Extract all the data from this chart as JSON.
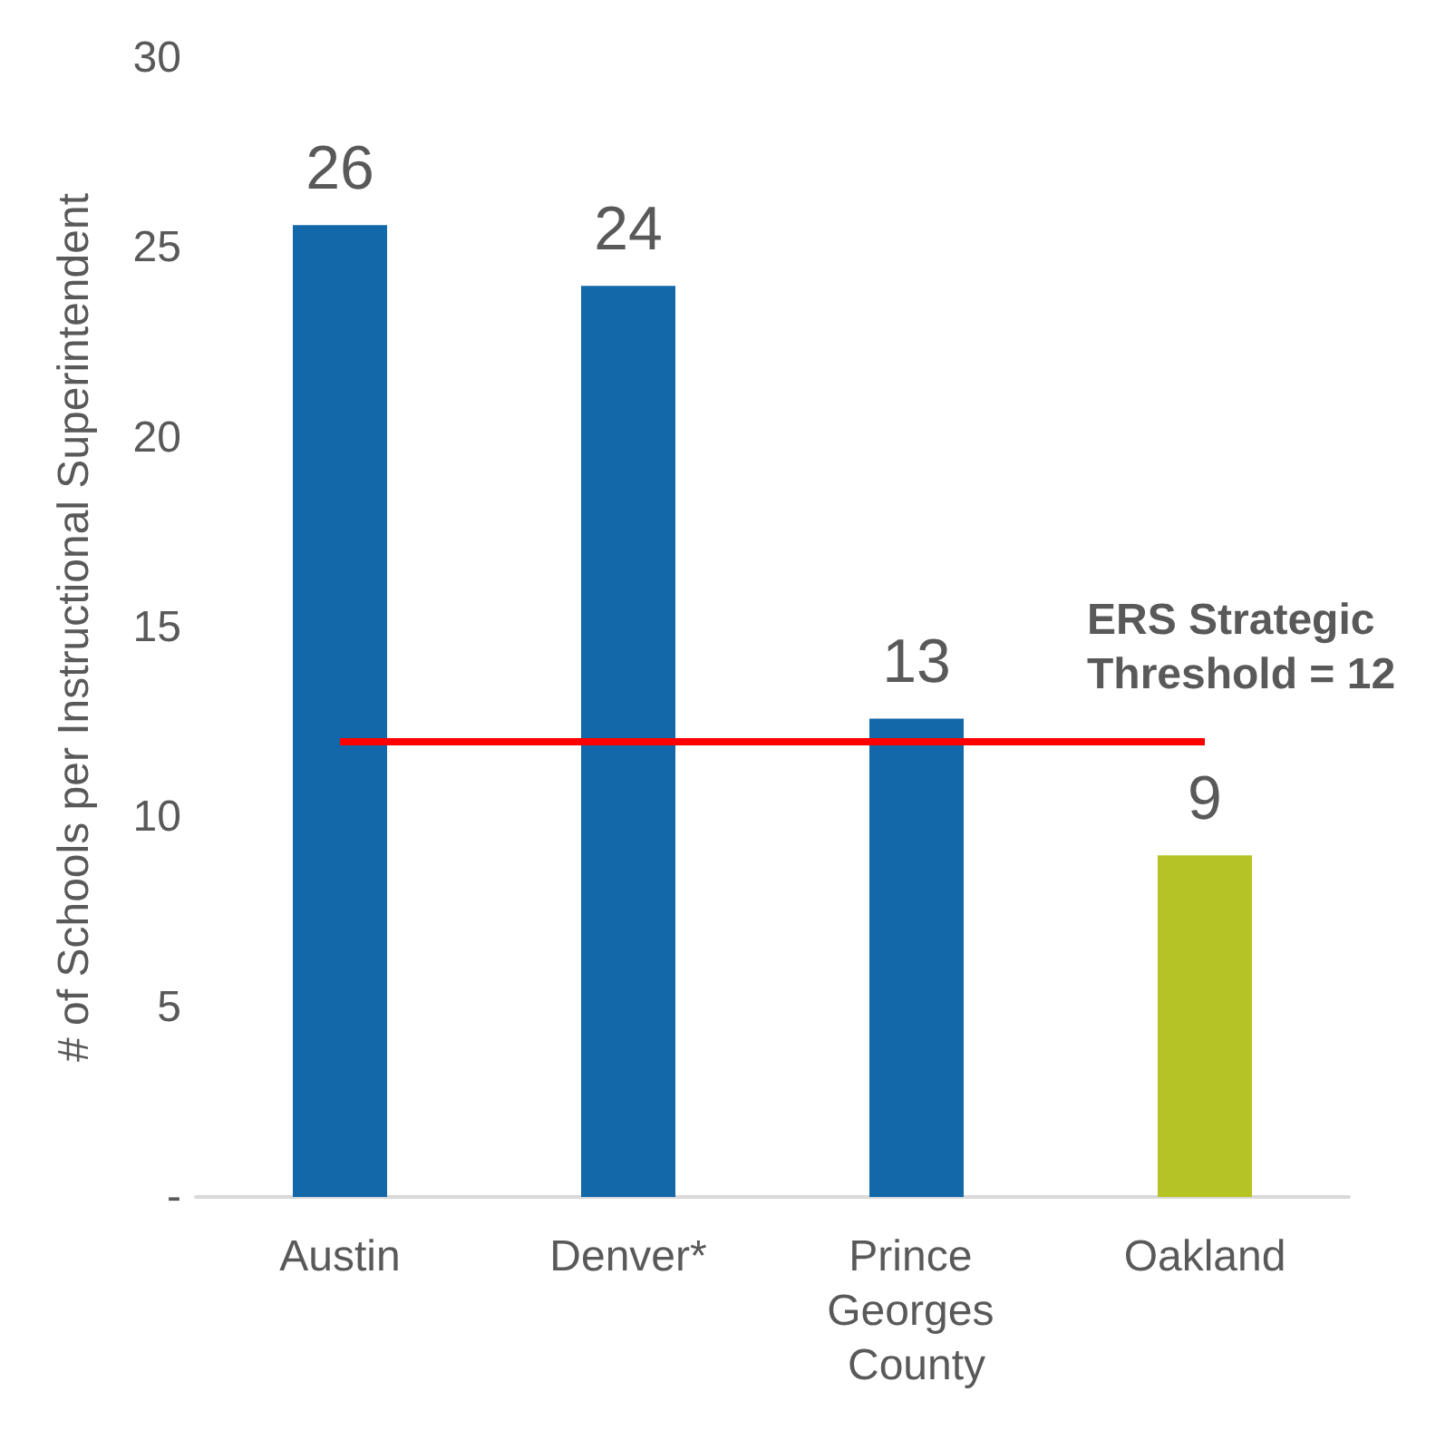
{
  "chart_data": {
    "type": "bar",
    "ylabel": "# of Schools per Instructional Superintendent",
    "categories": [
      "Austin",
      "Denver*",
      "Prince Georges County",
      "Oakland"
    ],
    "values": [
      25.6,
      24,
      12.6,
      9
    ],
    "value_labels": [
      "26",
      "24",
      "13",
      "9"
    ],
    "colors": [
      "#1268a8",
      "#1268a8",
      "#1268a8",
      "#b5c424"
    ],
    "ylim": [
      0,
      30
    ],
    "yticks": [
      {
        "value": 0,
        "label": "-"
      },
      5,
      10,
      15,
      20,
      25,
      30
    ],
    "grid": false,
    "ref_lines": [
      {
        "axis": "y",
        "value": 12,
        "label": "ERS Strategic Threshold = 12",
        "color": "#ff0000",
        "line_style": "solid"
      }
    ]
  }
}
